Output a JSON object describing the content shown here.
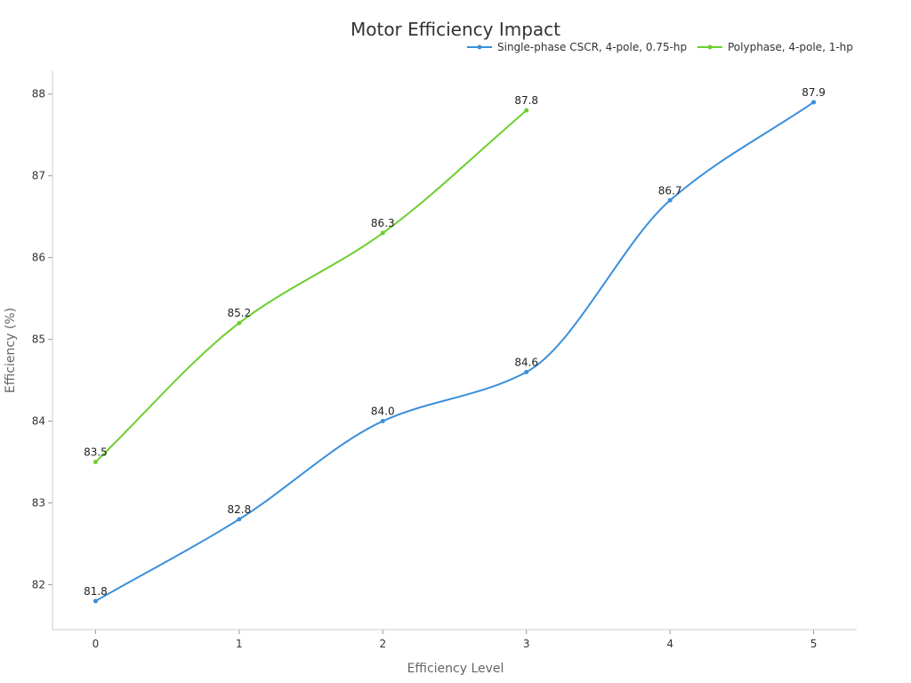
{
  "chart_data": {
    "type": "line",
    "title": "Motor Efficiency Impact",
    "xlabel": "Efficiency Level",
    "ylabel": "Efficiency (%)",
    "x": [
      0,
      1,
      2,
      3,
      4,
      5
    ],
    "xlim": [
      -0.3,
      5.3
    ],
    "ylim": [
      81.45,
      88.28
    ],
    "yticks": [
      82,
      83,
      84,
      85,
      86,
      87,
      88
    ],
    "grid": false,
    "legend_position": "top-right",
    "series": [
      {
        "name": "Single-phase CSCR, 4-pole, 0.75-hp",
        "color": "#3b8fdb",
        "x": [
          0,
          1,
          2,
          3,
          4,
          5
        ],
        "values": [
          81.8,
          82.8,
          84.0,
          84.6,
          86.7,
          87.9
        ],
        "labels": [
          "81.8",
          "82.8",
          "84.0",
          "84.6",
          "86.7",
          "87.9"
        ]
      },
      {
        "name": "Polyphase, 4-pole, 1-hp",
        "color": "#6ccf2e",
        "x": [
          0,
          1,
          2,
          3
        ],
        "values": [
          83.5,
          85.2,
          86.3,
          87.8
        ],
        "labels": [
          "83.5",
          "85.2",
          "86.3",
          "87.8"
        ]
      }
    ]
  }
}
